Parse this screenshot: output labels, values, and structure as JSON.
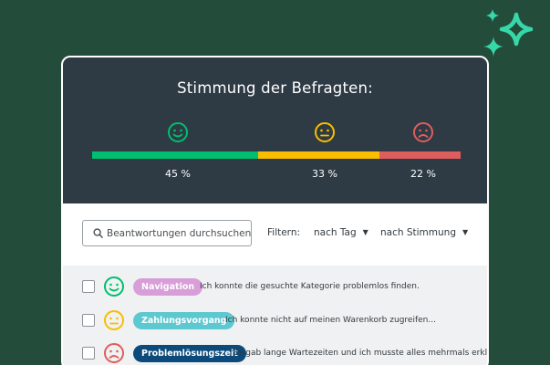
{
  "header": {
    "title": "Stimmung der Befragten:"
  },
  "sentiment": {
    "positive": {
      "icon": "happy-face-icon",
      "percent": 45,
      "label": "45 %",
      "color": "#00bf6f"
    },
    "neutral": {
      "icon": "neutral-face-icon",
      "percent": 33,
      "label": "33 %",
      "color": "#f9be00"
    },
    "negative": {
      "icon": "sad-face-icon",
      "percent": 22,
      "label": "22 %",
      "color": "#e05d5d"
    }
  },
  "toolbar": {
    "search": {
      "placeholder": "Beantwortungen durchsuchen",
      "icon": "search-icon"
    },
    "filter_label": "Filtern:",
    "filter_tag": "nach Tag",
    "filter_mood": "nach Stimmung",
    "caret_icon": "caret-down-icon"
  },
  "responses": [
    {
      "mood": "happy",
      "tag": "Navigation",
      "tag_bg": "#d89ed8",
      "tag_fg": "#ffffff",
      "text": "Ich konnte die gesuchte Kategorie problemlos finden."
    },
    {
      "mood": "neutral",
      "tag": "Zahlungsvorgang",
      "tag_bg": "#5ec8d0",
      "tag_fg": "#ffffff",
      "text": "Ich konnte nicht auf meinen Warenkorb zugreifen..."
    },
    {
      "mood": "sad",
      "tag": "Problemlösungszeit",
      "tag_bg": "#0b4a7a",
      "tag_fg": "#ffffff",
      "text": "Es gab lange Wartezeiten und ich musste alles mehrmals erklären..."
    }
  ]
}
